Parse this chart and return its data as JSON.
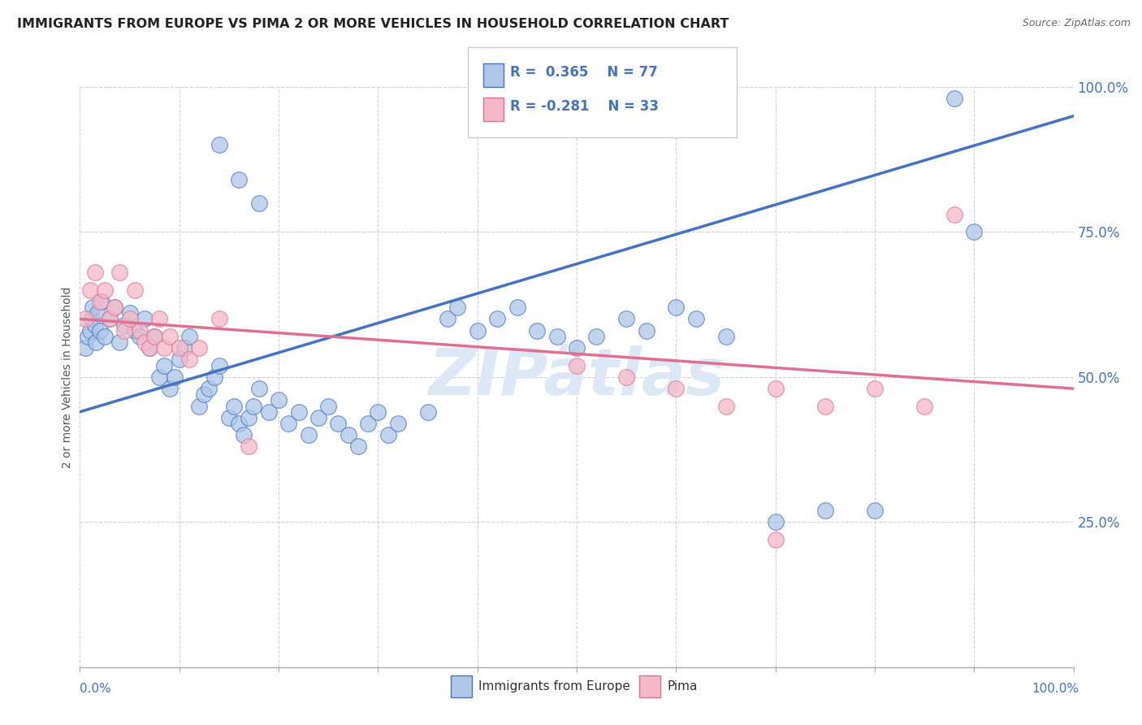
{
  "title": "IMMIGRANTS FROM EUROPE VS PIMA 2 OR MORE VEHICLES IN HOUSEHOLD CORRELATION CHART",
  "source": "Source: ZipAtlas.com",
  "ylabel": "2 or more Vehicles in Household",
  "watermark": "ZIPatlas",
  "legend_blue_label": "Immigrants from Europe",
  "legend_pink_label": "Pima",
  "blue_R": 0.365,
  "blue_N": 77,
  "pink_R": -0.281,
  "pink_N": 33,
  "blue_color": "#aec6e8",
  "pink_color": "#f5b8c8",
  "blue_line_color": "#4472c4",
  "pink_line_color": "#e07090",
  "blue_scatter": [
    [
      0.5,
      55
    ],
    [
      0.8,
      57
    ],
    [
      1.0,
      58
    ],
    [
      1.2,
      60
    ],
    [
      1.3,
      62
    ],
    [
      1.5,
      59
    ],
    [
      1.6,
      56
    ],
    [
      1.8,
      61
    ],
    [
      2.0,
      58
    ],
    [
      2.2,
      63
    ],
    [
      2.5,
      57
    ],
    [
      3.0,
      60
    ],
    [
      3.5,
      62
    ],
    [
      4.0,
      56
    ],
    [
      4.5,
      59
    ],
    [
      5.0,
      61
    ],
    [
      5.5,
      58
    ],
    [
      6.0,
      57
    ],
    [
      6.5,
      60
    ],
    [
      7.0,
      55
    ],
    [
      7.5,
      57
    ],
    [
      8.0,
      50
    ],
    [
      8.5,
      52
    ],
    [
      9.0,
      48
    ],
    [
      9.5,
      50
    ],
    [
      10.0,
      53
    ],
    [
      10.5,
      55
    ],
    [
      11.0,
      57
    ],
    [
      12.0,
      45
    ],
    [
      12.5,
      47
    ],
    [
      13.0,
      48
    ],
    [
      13.5,
      50
    ],
    [
      14.0,
      52
    ],
    [
      15.0,
      43
    ],
    [
      15.5,
      45
    ],
    [
      16.0,
      42
    ],
    [
      16.5,
      40
    ],
    [
      17.0,
      43
    ],
    [
      17.5,
      45
    ],
    [
      18.0,
      48
    ],
    [
      19.0,
      44
    ],
    [
      20.0,
      46
    ],
    [
      21.0,
      42
    ],
    [
      22.0,
      44
    ],
    [
      23.0,
      40
    ],
    [
      24.0,
      43
    ],
    [
      25.0,
      45
    ],
    [
      26.0,
      42
    ],
    [
      27.0,
      40
    ],
    [
      28.0,
      38
    ],
    [
      29.0,
      42
    ],
    [
      30.0,
      44
    ],
    [
      31.0,
      40
    ],
    [
      32.0,
      42
    ],
    [
      35.0,
      44
    ],
    [
      37.0,
      60
    ],
    [
      38.0,
      62
    ],
    [
      40.0,
      58
    ],
    [
      42.0,
      60
    ],
    [
      44.0,
      62
    ],
    [
      46.0,
      58
    ],
    [
      48.0,
      57
    ],
    [
      50.0,
      55
    ],
    [
      52.0,
      57
    ],
    [
      55.0,
      60
    ],
    [
      57.0,
      58
    ],
    [
      60.0,
      62
    ],
    [
      62.0,
      60
    ],
    [
      65.0,
      57
    ],
    [
      14.0,
      90
    ],
    [
      16.0,
      84
    ],
    [
      18.0,
      80
    ],
    [
      70.0,
      25
    ],
    [
      75.0,
      27
    ],
    [
      80.0,
      27
    ],
    [
      88.0,
      98
    ],
    [
      90.0,
      75
    ]
  ],
  "pink_scatter": [
    [
      0.5,
      60
    ],
    [
      1.0,
      65
    ],
    [
      1.5,
      68
    ],
    [
      2.0,
      63
    ],
    [
      2.5,
      65
    ],
    [
      3.0,
      60
    ],
    [
      3.5,
      62
    ],
    [
      4.0,
      68
    ],
    [
      4.5,
      58
    ],
    [
      5.0,
      60
    ],
    [
      5.5,
      65
    ],
    [
      6.0,
      58
    ],
    [
      6.5,
      56
    ],
    [
      7.0,
      55
    ],
    [
      7.5,
      57
    ],
    [
      8.0,
      60
    ],
    [
      8.5,
      55
    ],
    [
      9.0,
      57
    ],
    [
      10.0,
      55
    ],
    [
      11.0,
      53
    ],
    [
      12.0,
      55
    ],
    [
      14.0,
      60
    ],
    [
      17.0,
      38
    ],
    [
      50.0,
      52
    ],
    [
      55.0,
      50
    ],
    [
      60.0,
      48
    ],
    [
      65.0,
      45
    ],
    [
      70.0,
      48
    ],
    [
      75.0,
      45
    ],
    [
      80.0,
      48
    ],
    [
      85.0,
      45
    ],
    [
      70.0,
      22
    ],
    [
      88.0,
      78
    ]
  ],
  "xlim": [
    0,
    100
  ],
  "ylim": [
    0,
    100
  ],
  "ytick_labels": [
    "25.0%",
    "50.0%",
    "75.0%",
    "100.0%"
  ],
  "ytick_values": [
    25,
    50,
    75,
    100
  ],
  "blue_line_x": [
    0,
    100
  ],
  "blue_line_y": [
    44,
    95
  ],
  "pink_line_x": [
    0,
    100
  ],
  "pink_line_y": [
    60,
    48
  ],
  "background_color": "#ffffff",
  "grid_color": "#d0d0d0"
}
